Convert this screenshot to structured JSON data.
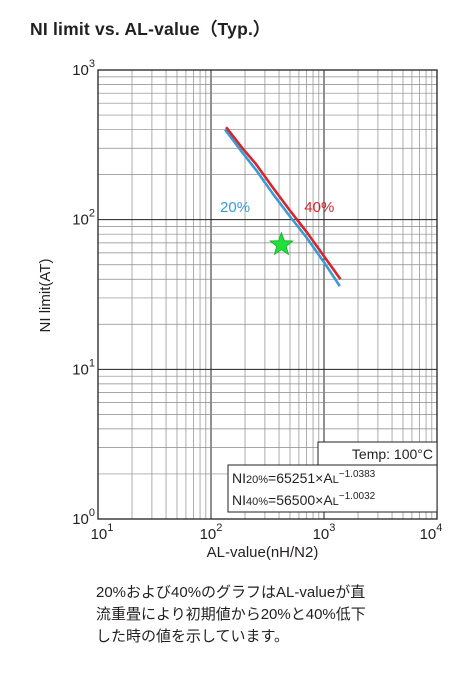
{
  "chart_data": {
    "type": "line",
    "title": "NI limit vs. AL-value（Typ.）",
    "xlabel": "AL-value(nH/N2)",
    "ylabel": "NI limit(AT)",
    "xscale": "log",
    "yscale": "log",
    "xlim": [
      10,
      10000
    ],
    "ylim": [
      1,
      1000
    ],
    "grid": true,
    "x_ticks": [
      {
        "value": 10,
        "base": "10",
        "exp": "1"
      },
      {
        "value": 100,
        "base": "10",
        "exp": "2"
      },
      {
        "value": 1000,
        "base": "10",
        "exp": "3"
      },
      {
        "value": 10000,
        "base": "10",
        "exp": "4"
      }
    ],
    "y_ticks": [
      {
        "value": 1,
        "base": "10",
        "exp": "0"
      },
      {
        "value": 10,
        "base": "10",
        "exp": "1"
      },
      {
        "value": 100,
        "base": "10",
        "exp": "2"
      },
      {
        "value": 1000,
        "base": "10",
        "exp": "3"
      }
    ],
    "series": [
      {
        "name": "20%",
        "color": "#3a9bd6",
        "x": [
          133,
          190,
          250,
          350,
          500,
          700,
          1000,
          1380
        ],
        "y": [
          400,
          280,
          215,
          150,
          105,
          76,
          52,
          36
        ]
      },
      {
        "name": "40%",
        "color": "#d6252b",
        "x": [
          136,
          190,
          250,
          350,
          500,
          700,
          1000,
          1400
        ],
        "y": [
          415,
          300,
          235,
          165,
          115,
          83,
          57,
          40
        ]
      }
    ],
    "marker": {
      "shape": "star",
      "color": "#22e03a",
      "x": 420,
      "y": 68
    },
    "annotations": {
      "temp": "Temp: 100°C",
      "eq20_prefix": "NI",
      "eq20_sub": "20%",
      "eq20_main": "=65251×A",
      "eq20_sub_l": "L",
      "eq20_sup": "−1.0383",
      "eq40_prefix": "NI",
      "eq40_sub": "40%",
      "eq40_main": "=56500×A",
      "eq40_sub_l": "L",
      "eq40_sup": "−1.0032"
    }
  },
  "note": {
    "line1": "20%および40%のグラフはAL-valueが直",
    "line2": "流重畳により初期値から20%と40%低下",
    "line3": "した時の値を示しています。"
  }
}
